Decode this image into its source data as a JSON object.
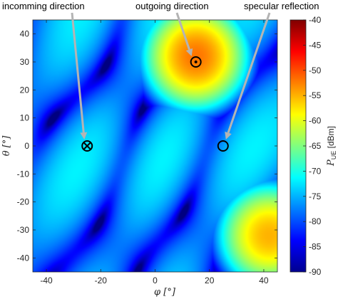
{
  "chart_data": {
    "type": "heatmap",
    "xlabel": "φ [°]",
    "ylabel": "θ [°]",
    "xlim": [
      -45,
      45
    ],
    "ylim": [
      -45,
      45
    ],
    "xticks": [
      "-40",
      "-20",
      "0",
      "20",
      "40"
    ],
    "xtick_values": [
      -40,
      -20,
      0,
      20,
      40
    ],
    "yticks": [
      "40",
      "30",
      "20",
      "10",
      "0",
      "-10",
      "-20",
      "-30",
      "-40"
    ],
    "ytick_values": [
      40,
      30,
      20,
      10,
      0,
      -10,
      -20,
      -30,
      -40
    ],
    "colorbar": {
      "label": "P_UE [dBm]",
      "label_main": "P",
      "label_sub": "UE",
      "label_unit": " [dBm]",
      "range": [
        -90,
        -40
      ],
      "ticks": [
        "-40",
        "-45",
        "-50",
        "-55",
        "-60",
        "-65",
        "-70",
        "-75",
        "-80",
        "-85",
        "-90"
      ],
      "tick_values": [
        -40,
        -45,
        -50,
        -55,
        -60,
        -65,
        -70,
        -75,
        -80,
        -85,
        -90
      ],
      "colormap": "jet"
    },
    "markers": [
      {
        "label": "incomming direction",
        "phi": -25,
        "theta": 0,
        "symbol": "circle-cross"
      },
      {
        "label": "outgoing direction",
        "phi": 15,
        "theta": 30,
        "symbol": "circle-dot"
      },
      {
        "label": "specular reflection",
        "phi": 25,
        "theta": 0,
        "symbol": "circle"
      }
    ],
    "peak_regions": [
      {
        "phi": 15,
        "theta": 32,
        "value": -52
      },
      {
        "phi": 42,
        "theta": -32,
        "value": -55
      }
    ]
  }
}
